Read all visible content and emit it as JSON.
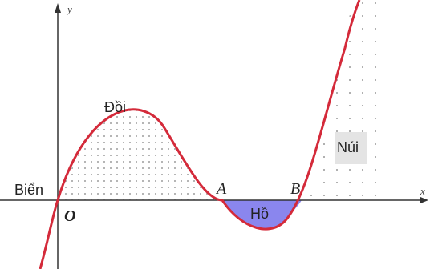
{
  "axes": {
    "x_label": "x",
    "y_label": "y",
    "origin_label": "O"
  },
  "points": {
    "A": "A",
    "B": "B"
  },
  "regions": {
    "sea": "Biển",
    "hill": "Đồi",
    "lake": "Hồ",
    "mountain": "Núi"
  },
  "colors": {
    "curve": "#d42a3a",
    "lake_fill": "#8a86ee",
    "dots": "#555555",
    "axis": "#333333",
    "label_box": "#e4e4e4"
  }
}
